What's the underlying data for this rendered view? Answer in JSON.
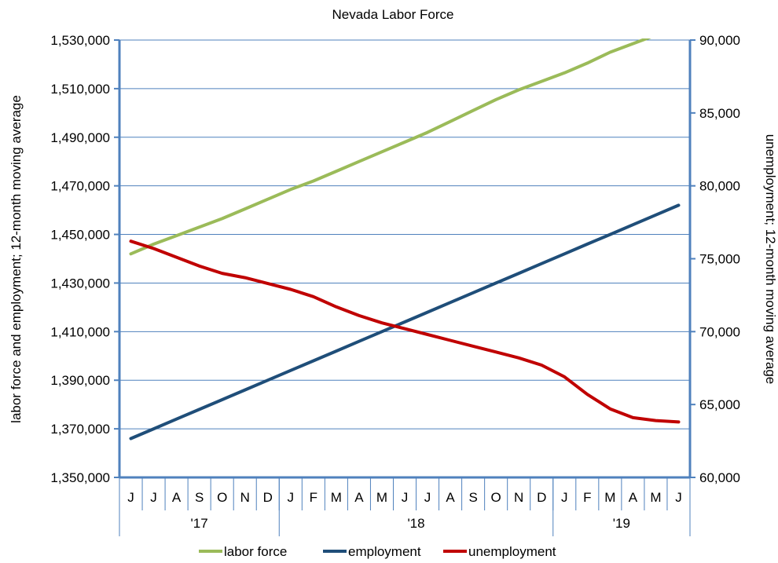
{
  "chart_data": {
    "type": "line",
    "title": "Nevada Labor Force",
    "ylabel": "labor force and employment; 12-month moving average",
    "y2label": "unemployment; 12-month moving average",
    "ylim": [
      1350000,
      1530000
    ],
    "y2lim": [
      60000,
      90000
    ],
    "yticks": [
      "1,350,000",
      "1,370,000",
      "1,390,000",
      "1,410,000",
      "1,430,000",
      "1,450,000",
      "1,470,000",
      "1,490,000",
      "1,510,000",
      "1,530,000"
    ],
    "yticks_values": [
      1350000,
      1370000,
      1390000,
      1410000,
      1430000,
      1450000,
      1470000,
      1490000,
      1510000,
      1530000
    ],
    "y2ticks": [
      "60,000",
      "65,000",
      "70,000",
      "75,000",
      "80,000",
      "85,000",
      "90,000"
    ],
    "y2ticks_values": [
      60000,
      65000,
      70000,
      75000,
      80000,
      85000,
      90000
    ],
    "x": [
      "Jun 2017",
      "Jul 2017",
      "Aug 2017",
      "Sep 2017",
      "Oct 2017",
      "Nov 2017",
      "Dec 2017",
      "Jan 2018",
      "Feb 2018",
      "Mar 2018",
      "Apr 2018",
      "May 2018",
      "Jun 2018",
      "Jul 2018",
      "Aug 2018",
      "Sep 2018",
      "Oct 2018",
      "Nov 2018",
      "Dec 2018",
      "Jan 2019",
      "Feb 2019",
      "Mar 2019",
      "Apr 2019",
      "May 2019",
      "Jun 2019"
    ],
    "month_labels": [
      "J",
      "J",
      "A",
      "S",
      "O",
      "N",
      "D",
      "J",
      "F",
      "M",
      "A",
      "M",
      "J",
      "J",
      "A",
      "S",
      "O",
      "N",
      "D",
      "J",
      "F",
      "M",
      "A",
      "M",
      "J"
    ],
    "year_groups": [
      {
        "label": "'17",
        "start": 0,
        "end": 6
      },
      {
        "label": "'18",
        "start": 7,
        "end": 18
      },
      {
        "label": "'19",
        "start": 19,
        "end": 24
      }
    ],
    "series": [
      {
        "name": "labor force",
        "axis": "left",
        "color": "#9bbb59",
        "values": [
          1442000,
          1446000,
          1449500,
          1453000,
          1456500,
          1460500,
          1464500,
          1468500,
          1472000,
          1476000,
          1480000,
          1484000,
          1488000,
          1492000,
          1496500,
          1501000,
          1505500,
          1509500,
          1513000,
          1516500,
          1520500,
          1525000,
          1528500,
          1532000,
          1536000
        ]
      },
      {
        "name": "employment",
        "axis": "left",
        "color": "#1f4e79",
        "values": [
          1366000,
          1370000,
          1374000,
          1378000,
          1382000,
          1386000,
          1390000,
          1394000,
          1398000,
          1402000,
          1406000,
          1410000,
          1414000,
          1418000,
          1422000,
          1426000,
          1430000,
          1434000,
          1438000,
          1442000,
          1446000,
          1450000,
          1454000,
          1458000,
          1462000
        ]
      },
      {
        "name": "unemployment",
        "axis": "right",
        "color": "#c00000",
        "values": [
          76200,
          75700,
          75100,
          74500,
          74000,
          73700,
          73300,
          72900,
          72400,
          71700,
          71100,
          70600,
          70200,
          69800,
          69400,
          69000,
          68600,
          68200,
          67700,
          66900,
          65700,
          64700,
          64100,
          63900,
          63800
        ]
      }
    ],
    "legend": {
      "position": "bottom",
      "entries": [
        "labor force",
        "employment",
        "unemployment"
      ]
    },
    "grid": true
  }
}
